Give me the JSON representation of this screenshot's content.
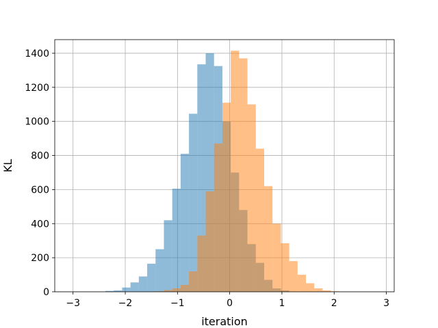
{
  "chart_data": {
    "type": "bar",
    "xlabel": "iteration",
    "ylabel": "KL",
    "xlim": [
      -3.35,
      3.15
    ],
    "ylim": [
      0,
      1480
    ],
    "grid": true,
    "xticks": [
      -3,
      -2,
      -1,
      0,
      1,
      2,
      3
    ],
    "xtick_labels": [
      "−3",
      "−2",
      "−1",
      "0",
      "1",
      "2",
      "3"
    ],
    "yticks": [
      0,
      200,
      400,
      600,
      800,
      1000,
      1200,
      1400
    ],
    "ytick_labels": [
      "0",
      "200",
      "400",
      "600",
      "800",
      "1000",
      "1200",
      "1400"
    ],
    "series": [
      {
        "color": "#1f77b4",
        "opacity": 0.5,
        "bin_edges": [
          -2.38,
          -2.22,
          -2.06,
          -1.9,
          -1.74,
          -1.58,
          -1.42,
          -1.26,
          -1.1,
          -0.94,
          -0.78,
          -0.62,
          -0.46,
          -0.3,
          -0.14,
          0.02,
          0.18,
          0.34,
          0.5,
          0.66,
          0.82,
          0.98,
          1.14
        ],
        "values": [
          5,
          8,
          25,
          55,
          90,
          165,
          250,
          420,
          605,
          810,
          1045,
          1335,
          1400,
          1325,
          1000,
          700,
          480,
          280,
          170,
          70,
          20,
          8
        ]
      },
      {
        "color": "#ff7f0e",
        "opacity": 0.5,
        "bin_edges": [
          -1.42,
          -1.26,
          -1.1,
          -0.94,
          -0.78,
          -0.62,
          -0.46,
          -0.3,
          -0.14,
          0.02,
          0.18,
          0.34,
          0.5,
          0.66,
          0.82,
          0.98,
          1.14,
          1.3,
          1.46,
          1.62,
          1.78,
          1.94,
          2.1
        ],
        "values": [
          3,
          10,
          20,
          40,
          120,
          330,
          590,
          870,
          1110,
          1415,
          1370,
          1100,
          840,
          620,
          400,
          285,
          180,
          100,
          50,
          20,
          8,
          3
        ]
      }
    ]
  }
}
